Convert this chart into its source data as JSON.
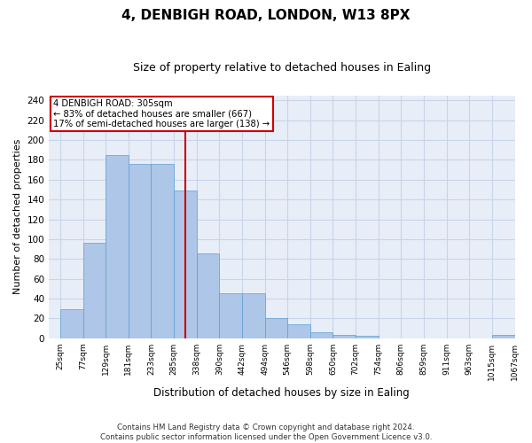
{
  "title": "4, DENBIGH ROAD, LONDON, W13 8PX",
  "subtitle": "Size of property relative to detached houses in Ealing",
  "xlabel": "Distribution of detached houses by size in Ealing",
  "ylabel": "Number of detached properties",
  "bar_values": [
    29,
    96,
    185,
    176,
    176,
    149,
    86,
    45,
    45,
    20,
    14,
    6,
    3,
    2,
    0,
    0,
    0,
    0,
    0,
    3
  ],
  "bin_labels": [
    "25sqm",
    "77sqm",
    "129sqm",
    "181sqm",
    "233sqm",
    "285sqm",
    "338sqm",
    "390sqm",
    "442sqm",
    "494sqm",
    "546sqm",
    "598sqm",
    "650sqm",
    "702sqm",
    "754sqm",
    "806sqm",
    "859sqm",
    "911sqm",
    "963sqm",
    "1015sqm",
    "1067sqm"
  ],
  "bar_color": "#aec6e8",
  "bar_edge_color": "#5a9fd4",
  "reference_line_label": "4 DENBIGH ROAD: 305sqm",
  "annotation_line1": "← 83% of detached houses are smaller (667)",
  "annotation_line2": "17% of semi-detached houses are larger (138) →",
  "ref_line_color": "#cc0000",
  "annotation_box_color": "#cc0000",
  "ylim": [
    0,
    245
  ],
  "yticks": [
    0,
    20,
    40,
    60,
    80,
    100,
    120,
    140,
    160,
    180,
    200,
    220,
    240
  ],
  "grid_color": "#c8d4e8",
  "bg_color": "#e8eef8",
  "footer_line1": "Contains HM Land Registry data © Crown copyright and database right 2024.",
  "footer_line2": "Contains public sector information licensed under the Open Government Licence v3.0."
}
